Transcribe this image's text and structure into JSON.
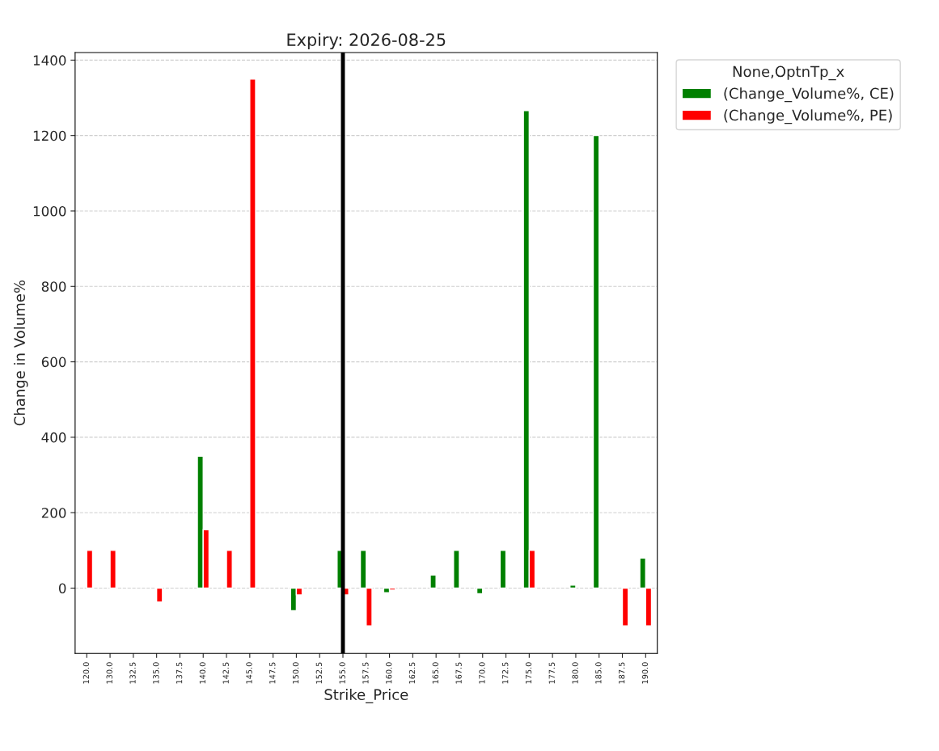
{
  "chart_data": {
    "type": "bar",
    "title": "Expiry: 2026-08-25",
    "xlabel": "Strike_Price",
    "ylabel": "Change in Volume%",
    "legend_title": "None,OptnTp_x",
    "categories": [
      "120.0",
      "130.0",
      "132.5",
      "135.0",
      "137.5",
      "140.0",
      "142.5",
      "145.0",
      "147.5",
      "150.0",
      "152.5",
      "155.0",
      "157.5",
      "160.0",
      "162.5",
      "165.0",
      "167.5",
      "170.0",
      "172.5",
      "175.0",
      "177.5",
      "180.0",
      "185.0",
      "187.5",
      "190.0"
    ],
    "series": [
      {
        "name": "(Change_Volume%, CE)",
        "color": "#008000",
        "values": [
          null,
          null,
          null,
          null,
          null,
          350,
          null,
          null,
          null,
          -60,
          null,
          100,
          100,
          -12,
          null,
          35,
          100,
          -15,
          100,
          1266,
          null,
          8,
          1200,
          null,
          80
        ]
      },
      {
        "name": "(Change_Volume%, PE)",
        "color": "#ff0000",
        "values": [
          100,
          100,
          null,
          -37,
          null,
          155,
          100,
          1350,
          null,
          -18,
          null,
          -18,
          -100,
          -5,
          null,
          null,
          null,
          null,
          null,
          100,
          null,
          null,
          null,
          -100,
          -100
        ]
      }
    ],
    "ylim": [
      -173,
      1420
    ],
    "yticks": [
      0,
      200,
      400,
      600,
      800,
      1000,
      1200,
      1400
    ],
    "ref_lines": [
      {
        "axis": "x",
        "value": "155.0",
        "color": "#000000",
        "line_style": "solid"
      }
    ],
    "grid": "y",
    "legend": "right"
  }
}
